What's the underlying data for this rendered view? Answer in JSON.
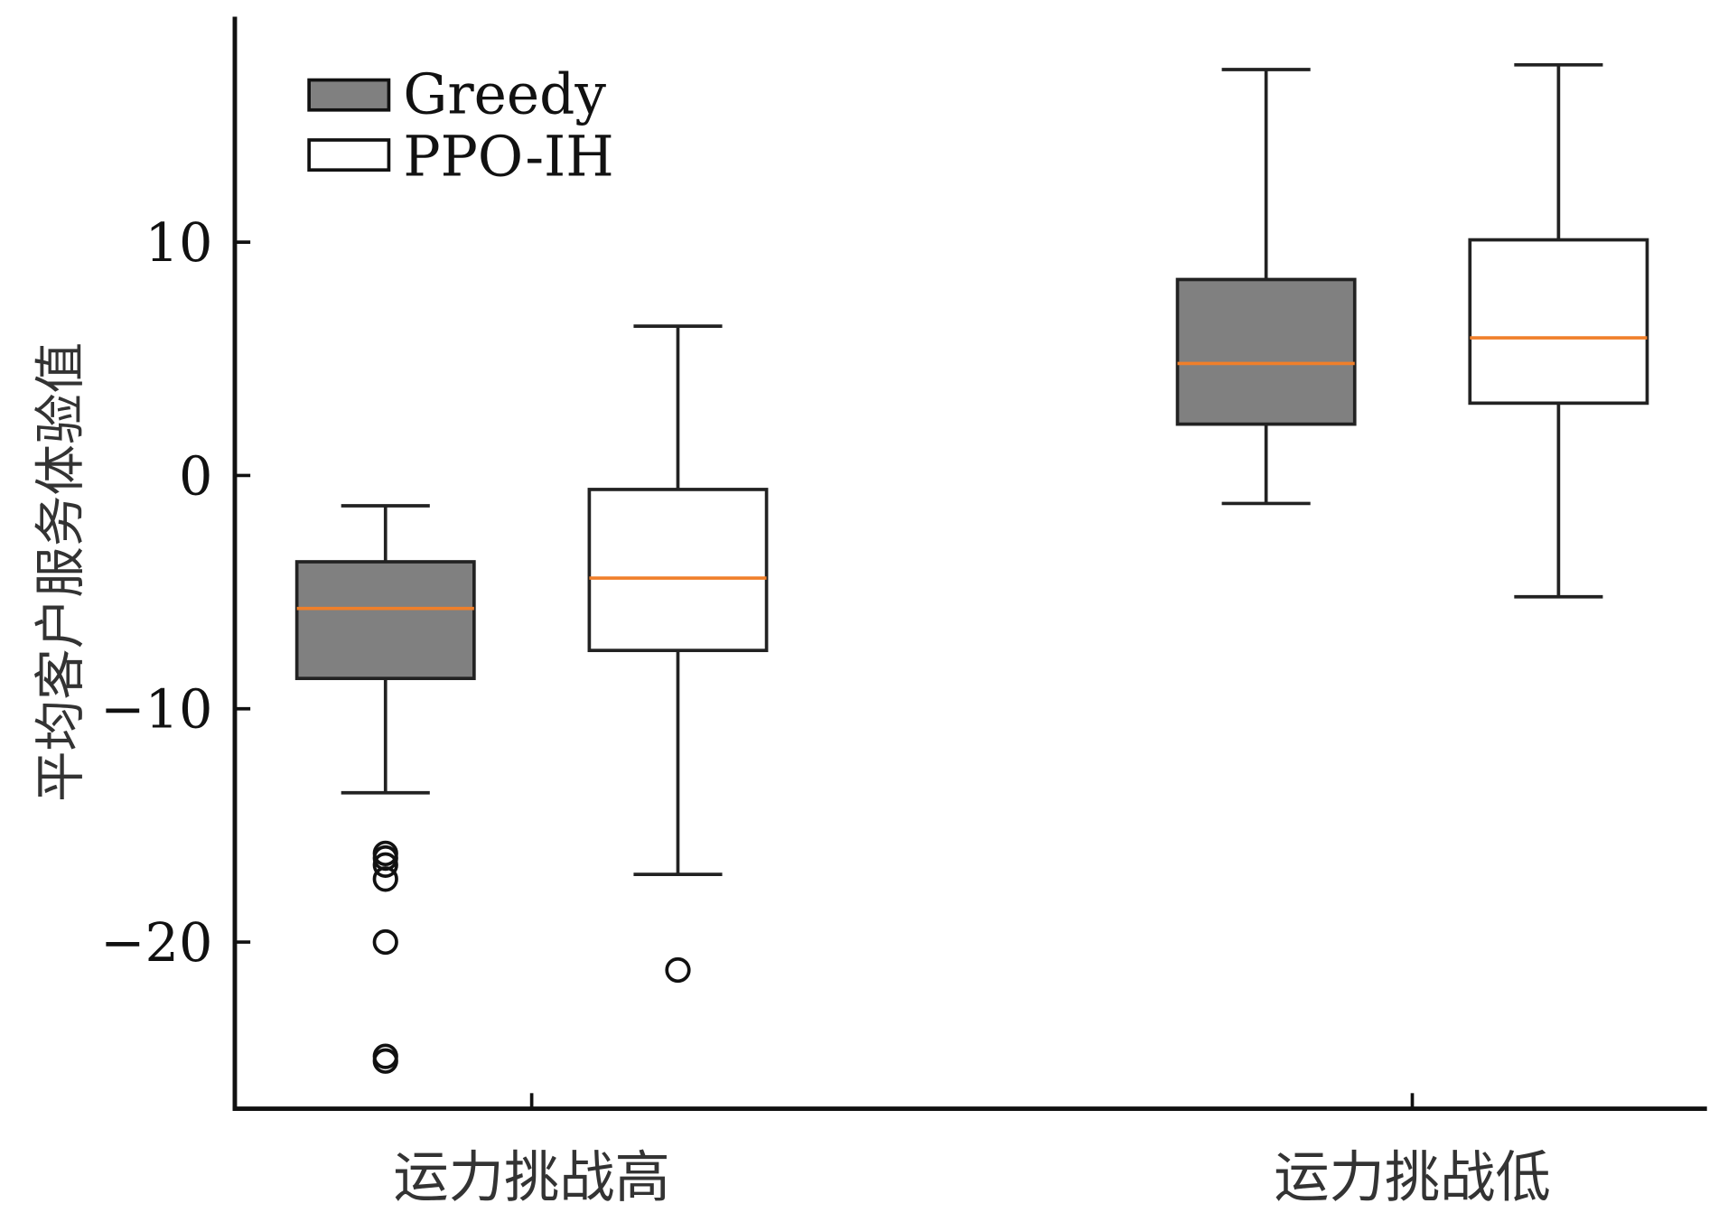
{
  "chart_data": {
    "type": "box",
    "title": "",
    "xlabel": "",
    "ylabel": "平均客户服务体验值",
    "categories": [
      "运力挑战高",
      "运力挑战低"
    ],
    "ylim": [
      -27.1,
      19.7
    ],
    "yticks": [
      10,
      0,
      -10,
      -20
    ],
    "ytick_labels": [
      "10",
      "0",
      "−10",
      "−20"
    ],
    "grid": false,
    "legend": {
      "position": "top-left",
      "entries": [
        "Greedy",
        "PPO-IH"
      ]
    },
    "series": [
      {
        "name": "Greedy",
        "fill": "#808080",
        "boxes": [
          {
            "whisker_low": -13.6,
            "q1": -8.7,
            "median": -5.7,
            "q3": -3.7,
            "whisker_high": -1.3,
            "outliers": [
              -16.2,
              -16.4,
              -16.7,
              -17.3,
              -20.0,
              -24.9,
              -25.1
            ]
          },
          {
            "whisker_low": -1.2,
            "q1": 2.2,
            "median": 4.8,
            "q3": 8.4,
            "whisker_high": 17.4,
            "outliers": []
          }
        ]
      },
      {
        "name": "PPO-IH",
        "fill": "#ffffff",
        "boxes": [
          {
            "whisker_low": -17.1,
            "q1": -7.5,
            "median": -4.4,
            "q3": -0.6,
            "whisker_high": 6.4,
            "outliers": [
              -21.2
            ]
          },
          {
            "whisker_low": -5.2,
            "q1": 3.1,
            "median": 5.9,
            "q3": 10.1,
            "whisker_high": 17.6,
            "outliers": []
          }
        ]
      }
    ],
    "median_color": "#f07f2a"
  }
}
